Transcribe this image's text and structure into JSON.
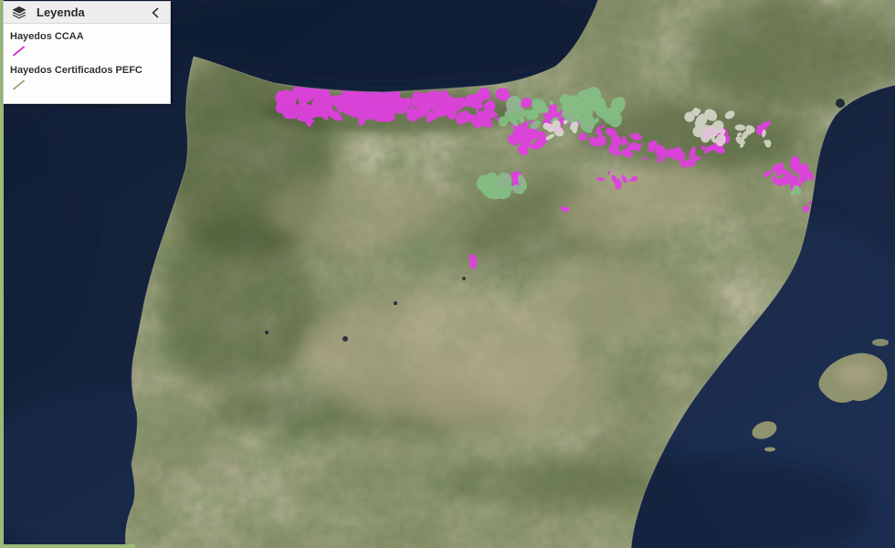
{
  "frame": {
    "border_color": "#9cba78"
  },
  "legend": {
    "title": "Leyenda",
    "header_icon": "layers-icon",
    "collapse_icon": "chevron-left-icon",
    "items": [
      {
        "label": "Hayedos CCAA",
        "symbol": "diagonal-line",
        "symbol_color": "#cf3ccf"
      },
      {
        "label": "Hayedos Certificados PEFC",
        "symbol": "diagonal-line",
        "symbol_color": "#a6a886"
      }
    ]
  },
  "map": {
    "colors": {
      "ocean": "#16243f",
      "ocean_deep": "#0e1a31",
      "ocean_light": "#24375f",
      "land_base": "#8d906d",
      "land_dark": "#42552f",
      "land_tan": "#b3a987",
      "island": "#90936f",
      "coast_edge": "#b9b295"
    },
    "overlay_layers": [
      {
        "name": "Hayedos CCAA",
        "color": "#e23ee2",
        "opacity": 0.92,
        "clusters": [
          [
            340,
            116,
            36,
            17,
            60,
            4.2
          ],
          [
            405,
            114,
            34,
            19,
            60,
            4.2
          ],
          [
            468,
            117,
            30,
            17,
            40,
            4.0
          ],
          [
            525,
            120,
            26,
            18,
            30,
            3.6
          ],
          [
            560,
            110,
            18,
            12,
            14,
            3.2
          ],
          [
            578,
            150,
            20,
            15,
            30,
            4.0
          ],
          [
            612,
            128,
            22,
            18,
            14,
            3.0
          ],
          [
            652,
            145,
            18,
            12,
            12,
            3.0
          ],
          [
            685,
            158,
            20,
            12,
            12,
            3.0
          ],
          [
            718,
            165,
            20,
            12,
            12,
            3.0
          ],
          [
            748,
            172,
            16,
            10,
            10,
            3.0
          ],
          [
            783,
            158,
            14,
            16,
            14,
            3.2
          ],
          [
            680,
            195,
            24,
            9,
            8,
            2.4
          ],
          [
            865,
            192,
            30,
            14,
            26,
            3.4
          ],
          [
            893,
            224,
            16,
            9,
            12,
            2.8
          ],
          [
            893,
            252,
            9,
            7,
            6,
            2.6
          ],
          [
            838,
            140,
            9,
            7,
            6,
            2.4
          ],
          [
            568,
            198,
            16,
            11,
            12,
            3.0
          ],
          [
            516,
            288,
            5,
            8,
            5,
            3.0
          ],
          [
            620,
            230,
            4,
            4,
            3,
            2.2
          ]
        ]
      },
      {
        "name": "Hayedos Certificados PEFC",
        "color": "#84c286",
        "opacity": 0.88,
        "clusters": [
          [
            572,
            124,
            28,
            15,
            24,
            4.0
          ],
          [
            615,
            120,
            20,
            13,
            16,
            3.6
          ],
          [
            650,
            122,
            30,
            19,
            30,
            4.4
          ],
          [
            548,
            201,
            25,
            14,
            20,
            4.0
          ],
          [
            872,
            206,
            9,
            7,
            6,
            2.4
          ],
          [
            911,
            229,
            6,
            3,
            3,
            2.0
          ]
        ]
      },
      {
        "name": "snow",
        "color": "#e4e4da",
        "opacity": 0.8,
        "clusters": [
          [
            790,
            140,
            26,
            17,
            16,
            3.6
          ],
          [
            825,
            152,
            18,
            12,
            10,
            3.0
          ],
          [
            762,
            126,
            8,
            5,
            4,
            2.4
          ],
          [
            612,
            143,
            22,
            10,
            10,
            3.0
          ]
        ]
      }
    ]
  }
}
